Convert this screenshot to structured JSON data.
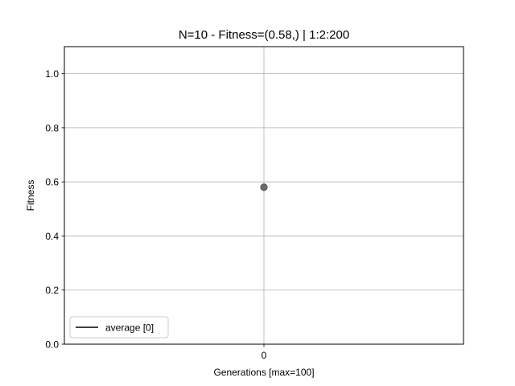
{
  "chart_data": {
    "type": "scatter",
    "title": "N=10  - Fitness=(0.58,) | 1:2:200",
    "xlabel": "Generations [max=100]",
    "ylabel": "Fitness",
    "xlim": [
      -1,
      1
    ],
    "ylim": [
      0,
      1.1
    ],
    "x_ticks": [
      0
    ],
    "y_ticks": [
      0.0,
      0.2,
      0.4,
      0.6,
      0.8,
      1.0
    ],
    "grid": true,
    "legend_position": "lower-left",
    "series": [
      {
        "name": "average [0]",
        "x": [
          0
        ],
        "y": [
          0.58
        ],
        "line_color": "#000000",
        "marker_color": "#555555"
      }
    ]
  }
}
